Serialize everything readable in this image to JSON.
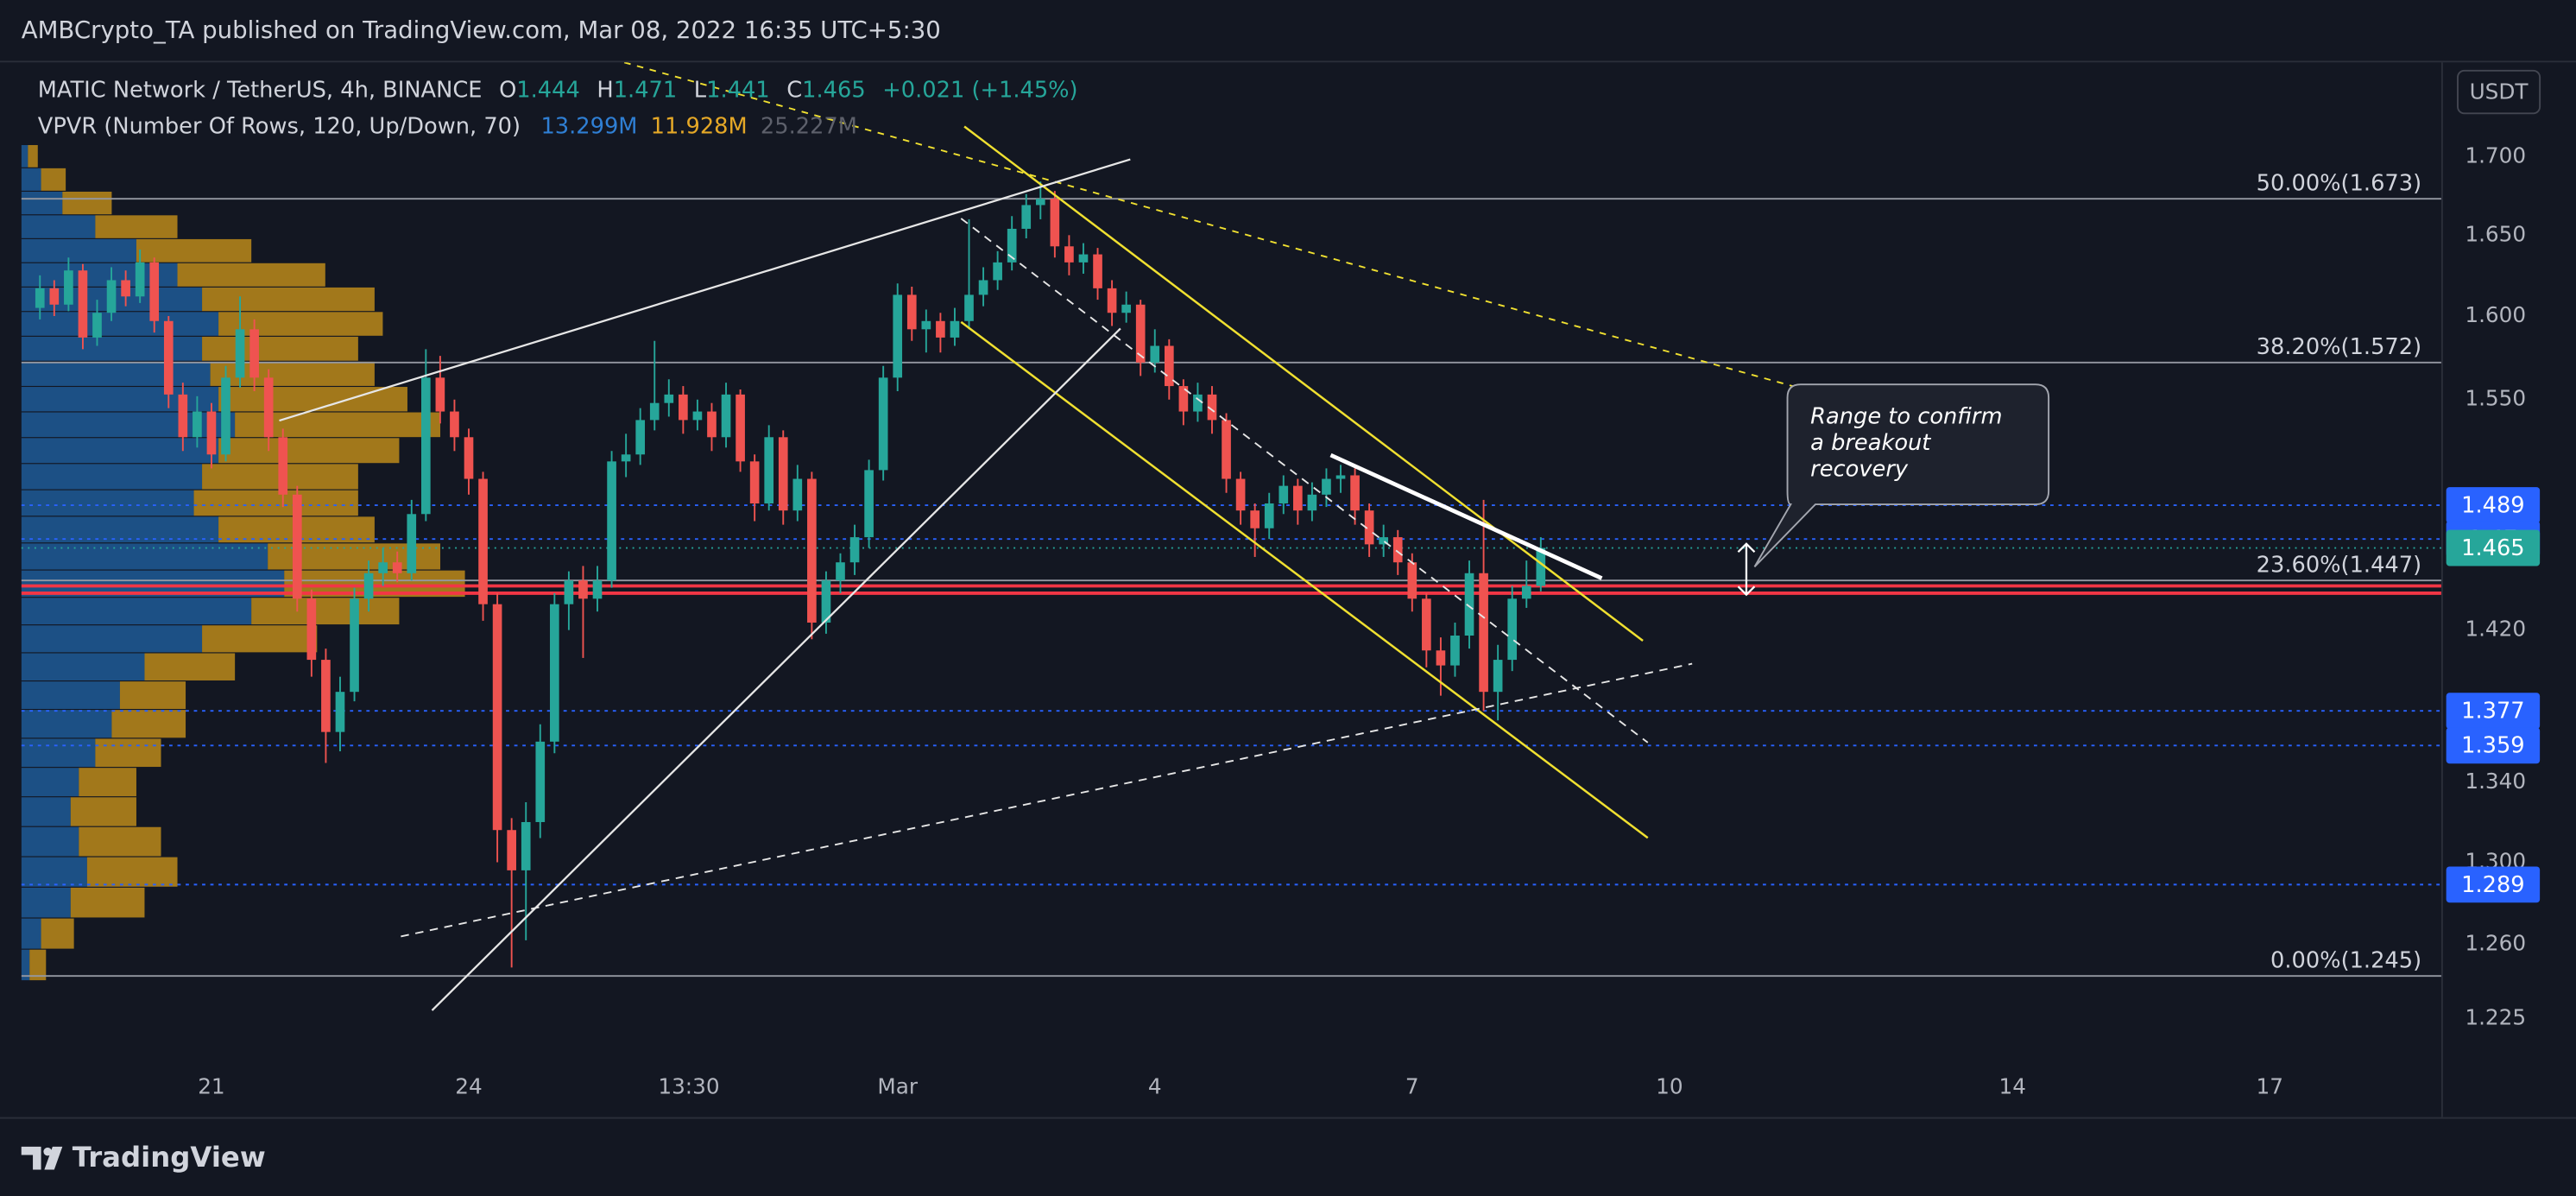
{
  "header": {
    "publisher": "AMBCrypto_TA published on TradingView.com, Mar 08, 2022 16:35 UTC+5:30",
    "brand": "TradingView"
  },
  "chart_data": {
    "type": "candlestick",
    "symbol": "MATIC Network / TetherUS, 4h, BINANCE",
    "ohlc_labels": [
      "O",
      "H",
      "L",
      "C"
    ],
    "change": "+0.021 (+1.45%)",
    "indicator": "VPVR (Number Of Rows, 120, Up/Down, 70)",
    "indicator_values": [
      {
        "text": "13.299M",
        "color": "#2f7fd4"
      },
      {
        "text": "11.928M",
        "color": "#e5a827"
      },
      {
        "text": "25.227M",
        "color": "#5d606b"
      }
    ],
    "currency": "USDT",
    "log_scale": true,
    "up_color": "#26a69a",
    "down_color": "#ef5350",
    "x": [
      -12,
      -11,
      -10,
      -9,
      -8,
      -7,
      -6,
      -5,
      -4,
      -3,
      -2,
      -1,
      0,
      1,
      2,
      3,
      4,
      5,
      6,
      7,
      8,
      9,
      10,
      11,
      12,
      13,
      14,
      15,
      16,
      17,
      18,
      19,
      20,
      21,
      22,
      23,
      24,
      25,
      26,
      27,
      28,
      29,
      30,
      31,
      32,
      33,
      34,
      35,
      36,
      37,
      38,
      39,
      40,
      41,
      42,
      43,
      44,
      45,
      46,
      47,
      48,
      49,
      50,
      51,
      52,
      53,
      54,
      55,
      56,
      57,
      58,
      59,
      60,
      61,
      62,
      63,
      64,
      65,
      66,
      67,
      68,
      69,
      70,
      71,
      72,
      73,
      74,
      75,
      76,
      77,
      78,
      79,
      80,
      81,
      82,
      83,
      84,
      85,
      86,
      87,
      88,
      89,
      90,
      91,
      92,
      93
    ],
    "ohlc": [
      [
        1.605,
        1.625,
        1.598,
        1.617
      ],
      [
        1.617,
        1.622,
        1.6,
        1.607
      ],
      [
        1.607,
        1.636,
        1.603,
        1.628
      ],
      [
        1.628,
        1.632,
        1.58,
        1.587
      ],
      [
        1.587,
        1.61,
        1.582,
        1.602
      ],
      [
        1.602,
        1.63,
        1.597,
        1.622
      ],
      [
        1.622,
        1.628,
        1.606,
        1.612
      ],
      [
        1.612,
        1.641,
        1.608,
        1.633
      ],
      [
        1.633,
        1.636,
        1.59,
        1.597
      ],
      [
        1.597,
        1.6,
        1.545,
        1.553
      ],
      [
        1.553,
        1.56,
        1.52,
        1.528
      ],
      [
        1.528,
        1.552,
        1.522,
        1.543
      ],
      [
        1.543,
        1.548,
        1.51,
        1.518
      ],
      [
        1.518,
        1.57,
        1.514,
        1.563
      ],
      [
        1.563,
        1.612,
        1.557,
        1.592
      ],
      [
        1.592,
        1.598,
        1.555,
        1.563
      ],
      [
        1.563,
        1.568,
        1.52,
        1.528
      ],
      [
        1.528,
        1.533,
        1.488,
        1.495
      ],
      [
        1.495,
        1.5,
        1.43,
        1.437
      ],
      [
        1.437,
        1.442,
        1.395,
        1.404
      ],
      [
        1.404,
        1.41,
        1.35,
        1.366
      ],
      [
        1.366,
        1.395,
        1.356,
        1.387
      ],
      [
        1.387,
        1.443,
        1.382,
        1.437
      ],
      [
        1.437,
        1.458,
        1.43,
        1.451
      ],
      [
        1.451,
        1.465,
        1.444,
        1.457
      ],
      [
        1.457,
        1.463,
        1.446,
        1.451
      ],
      [
        1.451,
        1.492,
        1.447,
        1.484
      ],
      [
        1.484,
        1.58,
        1.48,
        1.563
      ],
      [
        1.563,
        1.576,
        1.536,
        1.543
      ],
      [
        1.543,
        1.55,
        1.52,
        1.528
      ],
      [
        1.528,
        1.533,
        1.495,
        1.504
      ],
      [
        1.504,
        1.508,
        1.425,
        1.434
      ],
      [
        1.434,
        1.44,
        1.3,
        1.316
      ],
      [
        1.316,
        1.322,
        1.249,
        1.296
      ],
      [
        1.296,
        1.33,
        1.262,
        1.32
      ],
      [
        1.32,
        1.37,
        1.312,
        1.361
      ],
      [
        1.361,
        1.44,
        1.355,
        1.434
      ],
      [
        1.434,
        1.452,
        1.42,
        1.447
      ],
      [
        1.447,
        1.455,
        1.405,
        1.437
      ],
      [
        1.437,
        1.455,
        1.43,
        1.447
      ],
      [
        1.447,
        1.52,
        1.443,
        1.514
      ],
      [
        1.514,
        1.53,
        1.505,
        1.518
      ],
      [
        1.518,
        1.545,
        1.512,
        1.538
      ],
      [
        1.538,
        1.585,
        1.532,
        1.548
      ],
      [
        1.548,
        1.562,
        1.54,
        1.553
      ],
      [
        1.553,
        1.558,
        1.53,
        1.538
      ],
      [
        1.538,
        1.55,
        1.532,
        1.543
      ],
      [
        1.543,
        1.548,
        1.52,
        1.528
      ],
      [
        1.528,
        1.56,
        1.522,
        1.553
      ],
      [
        1.553,
        1.556,
        1.508,
        1.514
      ],
      [
        1.514,
        1.518,
        1.48,
        1.49
      ],
      [
        1.49,
        1.535,
        1.486,
        1.528
      ],
      [
        1.528,
        1.532,
        1.478,
        1.486
      ],
      [
        1.486,
        1.512,
        1.48,
        1.504
      ],
      [
        1.504,
        1.508,
        1.415,
        1.424
      ],
      [
        1.424,
        1.452,
        1.418,
        1.447
      ],
      [
        1.447,
        1.462,
        1.44,
        1.457
      ],
      [
        1.457,
        1.478,
        1.45,
        1.471
      ],
      [
        1.471,
        1.515,
        1.465,
        1.509
      ],
      [
        1.509,
        1.57,
        1.503,
        1.563
      ],
      [
        1.563,
        1.62,
        1.555,
        1.613
      ],
      [
        1.613,
        1.618,
        1.585,
        1.592
      ],
      [
        1.592,
        1.604,
        1.578,
        1.597
      ],
      [
        1.597,
        1.602,
        1.578,
        1.587
      ],
      [
        1.587,
        1.605,
        1.582,
        1.597
      ],
      [
        1.597,
        1.66,
        1.592,
        1.613
      ],
      [
        1.613,
        1.63,
        1.606,
        1.622
      ],
      [
        1.622,
        1.64,
        1.616,
        1.633
      ],
      [
        1.633,
        1.662,
        1.628,
        1.654
      ],
      [
        1.654,
        1.676,
        1.648,
        1.669
      ],
      [
        1.669,
        1.684,
        1.66,
        1.673
      ],
      [
        1.673,
        1.678,
        1.636,
        1.643
      ],
      [
        1.643,
        1.65,
        1.625,
        1.633
      ],
      [
        1.633,
        1.645,
        1.626,
        1.638
      ],
      [
        1.638,
        1.642,
        1.61,
        1.617
      ],
      [
        1.617,
        1.622,
        1.594,
        1.602
      ],
      [
        1.602,
        1.615,
        1.596,
        1.607
      ],
      [
        1.607,
        1.61,
        1.564,
        1.572
      ],
      [
        1.572,
        1.592,
        1.566,
        1.582
      ],
      [
        1.582,
        1.586,
        1.55,
        1.558
      ],
      [
        1.558,
        1.562,
        1.535,
        1.543
      ],
      [
        1.543,
        1.56,
        1.537,
        1.553
      ],
      [
        1.553,
        1.558,
        1.53,
        1.538
      ],
      [
        1.538,
        1.542,
        1.496,
        1.504
      ],
      [
        1.504,
        1.508,
        1.478,
        1.486
      ],
      [
        1.486,
        1.49,
        1.46,
        1.476
      ],
      [
        1.476,
        1.496,
        1.47,
        1.49
      ],
      [
        1.49,
        1.506,
        1.484,
        1.5
      ],
      [
        1.5,
        1.504,
        1.478,
        1.486
      ],
      [
        1.486,
        1.502,
        1.48,
        1.495
      ],
      [
        1.495,
        1.51,
        1.488,
        1.504
      ],
      [
        1.504,
        1.512,
        1.496,
        1.506
      ],
      [
        1.506,
        1.51,
        1.478,
        1.486
      ],
      [
        1.486,
        1.49,
        1.46,
        1.467
      ],
      [
        1.467,
        1.478,
        1.46,
        1.471
      ],
      [
        1.471,
        1.475,
        1.45,
        1.457
      ],
      [
        1.457,
        1.462,
        1.43,
        1.437
      ],
      [
        1.437,
        1.44,
        1.4,
        1.409
      ],
      [
        1.409,
        1.416,
        1.385,
        1.401
      ],
      [
        1.401,
        1.424,
        1.395,
        1.417
      ],
      [
        1.417,
        1.458,
        1.41,
        1.451
      ],
      [
        1.451,
        1.492,
        1.377,
        1.387
      ],
      [
        1.387,
        1.412,
        1.372,
        1.404
      ],
      [
        1.404,
        1.444,
        1.398,
        1.437
      ],
      [
        1.437,
        1.458,
        1.432,
        1.444
      ],
      [
        1.444,
        1.471,
        1.441,
        1.465
      ]
    ],
    "xlim": [
      -13.3,
      156
    ],
    "xticks": [
      {
        "value": 0,
        "label": "21"
      },
      {
        "value": 18,
        "label": "24"
      },
      {
        "value": 33.4,
        "label": "13:30"
      },
      {
        "value": 48,
        "label": "Mar"
      },
      {
        "value": 66,
        "label": "4"
      },
      {
        "value": 84,
        "label": "7"
      },
      {
        "value": 102,
        "label": "10"
      },
      {
        "value": 126,
        "label": "14"
      },
      {
        "value": 144,
        "label": "17"
      }
    ],
    "ylim": [
      1.206,
      1.762
    ],
    "yticks": [
      1.225,
      {
        "value": 1.26,
        "label": "1.260"
      },
      {
        "value": 1.3,
        "label": "1.300"
      },
      {
        "value": 1.34,
        "label": "1.340"
      },
      {
        "value": 1.42,
        "label": "1.420"
      },
      {
        "value": 1.55,
        "label": "1.550"
      },
      {
        "value": 1.6,
        "label": "1.600"
      },
      {
        "value": 1.65,
        "label": "1.650"
      },
      {
        "value": 1.7,
        "label": "1.700"
      }
    ],
    "fib_levels": [
      {
        "value": 1.673,
        "label": "50.00%(1.673)"
      },
      {
        "value": 1.572,
        "label": "38.20%(1.572)"
      },
      {
        "value": 1.447,
        "label": "23.60%(1.447)"
      },
      {
        "value": 1.245,
        "label": "0.00%(1.245)"
      }
    ],
    "red_lines": [
      1.444,
      1.44
    ],
    "price_lines": [
      1.489,
      1.47,
      1.377,
      1.359,
      1.289
    ],
    "line_color": "#2962ff",
    "vpvr": {
      "up_color": "#1f5a96",
      "down_color": "#c7911a",
      "price": [
        1.25,
        1.265,
        1.28,
        1.295,
        1.31,
        1.325,
        1.34,
        1.355,
        1.37,
        1.385,
        1.4,
        1.415,
        1.43,
        1.445,
        1.46,
        1.475,
        1.49,
        1.505,
        1.52,
        1.535,
        1.55,
        1.565,
        1.58,
        1.595,
        1.61,
        1.625,
        1.64,
        1.655,
        1.67,
        1.685,
        1.7
      ],
      "up": [
        5,
        12,
        30,
        40,
        35,
        30,
        35,
        45,
        55,
        60,
        75,
        110,
        140,
        160,
        150,
        120,
        105,
        110,
        120,
        130,
        120,
        115,
        110,
        120,
        110,
        95,
        70,
        45,
        25,
        12,
        4
      ],
      "down": [
        10,
        20,
        45,
        55,
        50,
        40,
        35,
        40,
        45,
        40,
        55,
        70,
        90,
        110,
        105,
        95,
        100,
        95,
        110,
        125,
        115,
        100,
        95,
        100,
        105,
        90,
        70,
        50,
        30,
        15,
        6
      ]
    },
    "callout": [
      "Range to confirm",
      "a breakout",
      "recovery"
    ]
  }
}
